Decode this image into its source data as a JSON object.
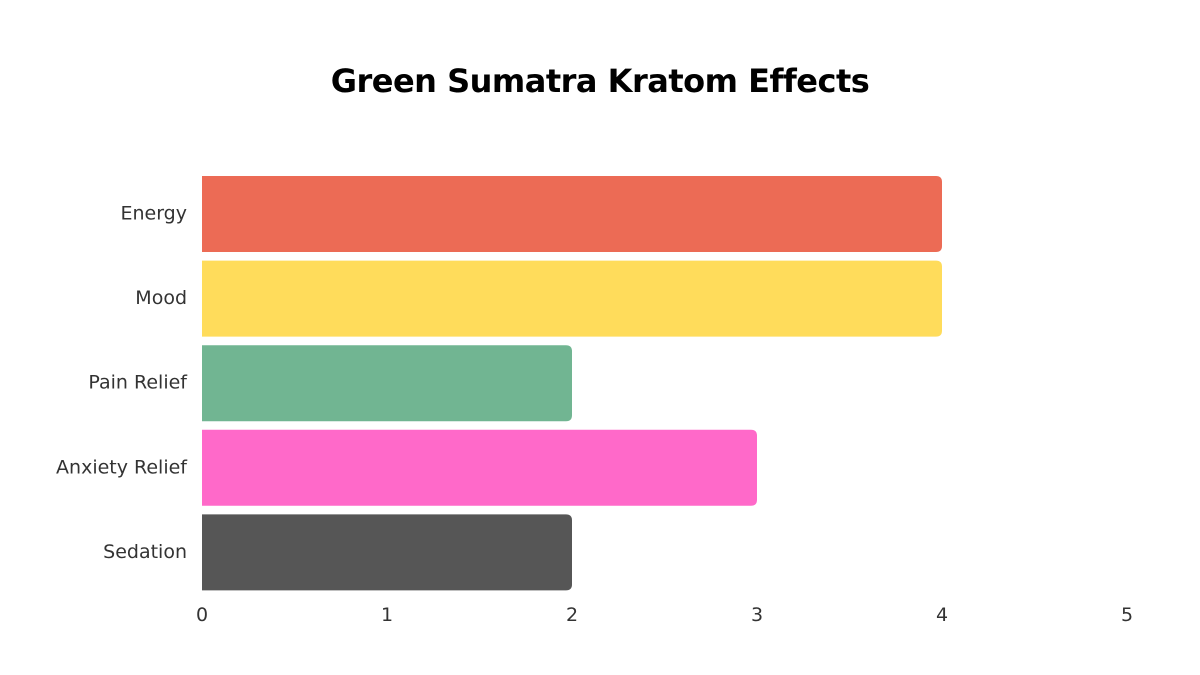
{
  "chart_data": {
    "type": "bar",
    "orientation": "horizontal",
    "title": "Green Sumatra Kratom Effects",
    "xlabel": "",
    "ylabel": "",
    "categories": [
      "Energy",
      "Mood",
      "Pain Relief",
      "Anxiety Relief",
      "Sedation"
    ],
    "values": [
      4,
      4,
      2,
      3,
      2
    ],
    "colors": [
      "#ec6b55",
      "#ffdc5b",
      "#71b592",
      "#ff69c9",
      "#565656"
    ],
    "xlim": [
      0,
      5
    ],
    "x_ticks": [
      "0",
      "1",
      "2",
      "3",
      "4",
      "5"
    ],
    "grid": false,
    "legend": "none"
  }
}
